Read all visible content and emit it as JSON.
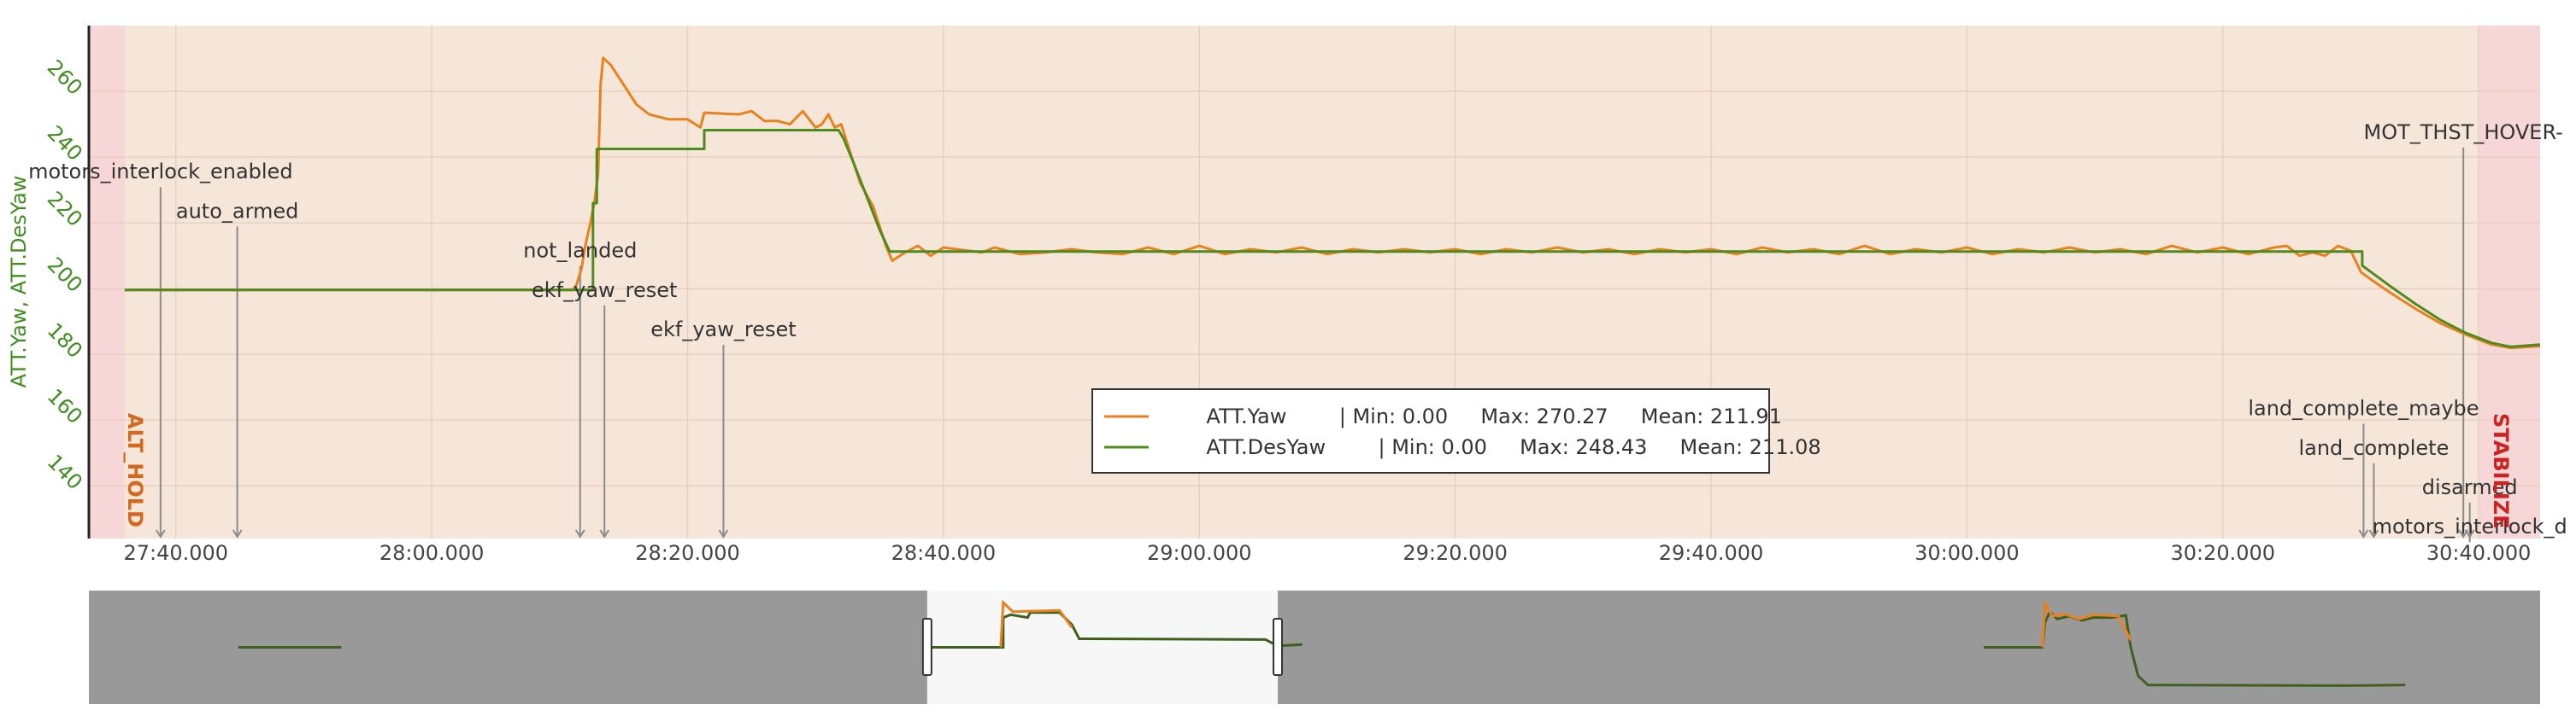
{
  "chart_data": {
    "type": "line",
    "xlabel": "",
    "ylabel": "ATT.Yaw, ATT.DesYaw",
    "x_range": [
      "27:33.200",
      "30:44.800"
    ],
    "ylim": [
      124,
      280
    ],
    "x_ticks": [
      "27:40.000",
      "28:00.000",
      "28:20.000",
      "28:40.000",
      "29:00.000",
      "29:20.000",
      "29:40.000",
      "30:00.000",
      "30:20.000",
      "30:40.000"
    ],
    "y_ticks": [
      140,
      160,
      180,
      200,
      220,
      240,
      260
    ],
    "grid": true,
    "legend": {
      "placement": "bottom-center",
      "entries": [
        {
          "name": "ATT.Yaw",
          "stats": "| Min: 0.00     Max: 270.27     Mean: 211.91"
        },
        {
          "name": "ATT.DesYaw",
          "stats": "| Min: 0.00     Max: 248.43     Mean: 211.08"
        }
      ]
    },
    "series": [
      {
        "name": "ATT.Yaw",
        "color": "#e8821f",
        "points": [
          [
            "27:36.000",
            199.6
          ],
          [
            "28:11.000",
            199.6
          ],
          [
            "28:11.300",
            201
          ],
          [
            "28:11.700",
            206
          ],
          [
            "28:12.000",
            213
          ],
          [
            "28:12.400",
            220
          ],
          [
            "28:12.700",
            226
          ],
          [
            "28:13.000",
            235
          ],
          [
            "28:13.200",
            262
          ],
          [
            "28:13.400",
            270.2
          ],
          [
            "28:14.000",
            268
          ],
          [
            "28:15.000",
            262
          ],
          [
            "28:16.000",
            256
          ],
          [
            "28:17.000",
            253
          ],
          [
            "28:18.500",
            251.5
          ],
          [
            "28:20.000",
            251.5
          ],
          [
            "28:21.000",
            249
          ],
          [
            "28:21.300",
            253.5
          ],
          [
            "28:24.000",
            253
          ],
          [
            "28:25.000",
            254
          ],
          [
            "28:26.000",
            251
          ],
          [
            "28:27.000",
            251
          ],
          [
            "28:28.000",
            250
          ],
          [
            "28:29.000",
            254
          ],
          [
            "28:30.000",
            249
          ],
          [
            "28:30.500",
            250
          ],
          [
            "28:31.000",
            253
          ],
          [
            "28:31.500",
            249
          ],
          [
            "28:32.000",
            250
          ],
          [
            "28:32.500",
            244
          ],
          [
            "28:33.500",
            232
          ],
          [
            "28:34.500",
            225
          ],
          [
            "28:35.500",
            213
          ],
          [
            "28:36.000",
            208.5
          ],
          [
            "28:37.000",
            211
          ],
          [
            "28:38.000",
            213
          ],
          [
            "28:39.000",
            210
          ],
          [
            "28:40.000",
            212.5
          ],
          [
            "28:41.000",
            212
          ],
          [
            "28:43.000",
            211
          ],
          [
            "28:44.000",
            212.5
          ],
          [
            "28:46.000",
            210.5
          ],
          [
            "28:48.000",
            211
          ],
          [
            "28:50.000",
            212
          ],
          [
            "28:52.000",
            211
          ],
          [
            "28:54.000",
            210.5
          ],
          [
            "28:56.000",
            212.5
          ],
          [
            "28:58.000",
            210.5
          ],
          [
            "29:00.000",
            213
          ],
          [
            "29:02.000",
            210.5
          ],
          [
            "29:04.000",
            212
          ],
          [
            "29:06.000",
            211
          ],
          [
            "29:08.000",
            212.5
          ],
          [
            "29:10.000",
            210.5
          ],
          [
            "29:12.000",
            212
          ],
          [
            "29:14.000",
            211
          ],
          [
            "29:16.000",
            212
          ],
          [
            "29:18.000",
            211
          ],
          [
            "29:20.000",
            212
          ],
          [
            "29:22.000",
            210.5
          ],
          [
            "29:24.000",
            212
          ],
          [
            "29:26.000",
            211
          ],
          [
            "29:28.000",
            212.5
          ],
          [
            "29:30.000",
            211
          ],
          [
            "29:32.000",
            212
          ],
          [
            "29:34.000",
            210.5
          ],
          [
            "29:36.000",
            212
          ],
          [
            "29:38.000",
            211
          ],
          [
            "29:40.000",
            212
          ],
          [
            "29:42.000",
            210.5
          ],
          [
            "29:44.000",
            212.5
          ],
          [
            "29:46.000",
            211
          ],
          [
            "29:48.000",
            212
          ],
          [
            "29:50.000",
            210.5
          ],
          [
            "29:52.000",
            213
          ],
          [
            "29:54.000",
            210.5
          ],
          [
            "29:56.000",
            212
          ],
          [
            "29:58.000",
            211
          ],
          [
            "30:00.000",
            212.5
          ],
          [
            "30:02.000",
            210.5
          ],
          [
            "30:04.000",
            212
          ],
          [
            "30:06.000",
            211
          ],
          [
            "30:08.000",
            212.5
          ],
          [
            "30:10.000",
            211
          ],
          [
            "30:12.000",
            212
          ],
          [
            "30:14.000",
            210.5
          ],
          [
            "30:16.000",
            213
          ],
          [
            "30:18.000",
            211
          ],
          [
            "30:20.000",
            212.5
          ],
          [
            "30:22.000",
            210.5
          ],
          [
            "30:24.000",
            212.5
          ],
          [
            "30:25.000",
            213
          ],
          [
            "30:26.000",
            210
          ],
          [
            "30:27.000",
            211
          ],
          [
            "30:28.000",
            210
          ],
          [
            "30:29.000",
            213
          ],
          [
            "30:30.000",
            211.5
          ],
          [
            "30:30.800",
            205
          ],
          [
            "30:31.500",
            203
          ],
          [
            "30:33.000",
            199
          ],
          [
            "30:35.000",
            194
          ],
          [
            "30:37.000",
            189.5
          ],
          [
            "30:39.000",
            186
          ],
          [
            "30:41.000",
            183
          ],
          [
            "30:42.500",
            182
          ],
          [
            "30:44.800",
            182.5
          ]
        ]
      },
      {
        "name": "ATT.DesYaw",
        "color": "#4f8a1f",
        "points": [
          [
            "27:36.000",
            199.6
          ],
          [
            "28:12.000",
            199.6
          ],
          [
            "28:12.600",
            199.6
          ],
          [
            "28:12.600",
            226
          ],
          [
            "28:12.900",
            226
          ],
          [
            "28:12.900",
            242.5
          ],
          [
            "28:15.000",
            242.5
          ],
          [
            "28:21.300",
            242.5
          ],
          [
            "28:21.300",
            248.2
          ],
          [
            "28:27.000",
            248.2
          ],
          [
            "28:31.800",
            248.2
          ],
          [
            "28:32.200",
            245.5
          ],
          [
            "28:33.000",
            238
          ],
          [
            "28:34.000",
            228
          ],
          [
            "28:35.000",
            218
          ],
          [
            "28:35.800",
            211.3
          ],
          [
            "30:30.900",
            211.3
          ],
          [
            "30:30.900",
            207
          ],
          [
            "30:33.000",
            201
          ],
          [
            "30:35.000",
            195.5
          ],
          [
            "30:37.000",
            190.5
          ],
          [
            "30:39.000",
            186.5
          ],
          [
            "30:41.000",
            183.5
          ],
          [
            "30:42.500",
            182.3
          ],
          [
            "30:44.800",
            183
          ]
        ]
      }
    ],
    "annotations": [
      {
        "label": "motors_interlock_enabled",
        "x": "27:38.800",
        "y": 233.5
      },
      {
        "label": "auto_armed",
        "x": "27:44.800",
        "y": 221.5
      },
      {
        "label": "not_landed",
        "x": "28:11.600",
        "y": 209.5
      },
      {
        "label": "ekf_yaw_reset",
        "x": "28:13.500",
        "y": 197.5
      },
      {
        "label": "ekf_yaw_reset",
        "x": "28:22.800",
        "y": 185.5
      },
      {
        "label": "MOT_THST_HOVER-",
        "x": "30:38.800",
        "y": 245.5
      },
      {
        "label": "land_complete_maybe",
        "x": "30:31.000",
        "y": 161.5
      },
      {
        "label": "land_complete",
        "x": "30:31.800",
        "y": 149.5
      },
      {
        "label": "disarmed",
        "x": "30:39.300",
        "y": 137.5
      },
      {
        "label": "motors_interlock_d",
        "x": "30:39.300",
        "y": 125.5
      }
    ],
    "modes": [
      {
        "label": "ALT_HOLD",
        "start": "27:33.200",
        "end": "27:36.000",
        "color": "#d2691e"
      },
      {
        "label": "STABILIZE",
        "start": "30:40.000",
        "end": "30:44.800",
        "color": "#cc2222"
      }
    ],
    "overview": {
      "window": [
        0.342,
        0.485
      ],
      "series_color_a": "#e8821f",
      "series_color_b": "#3f5f1f"
    }
  },
  "colors": {
    "plot_bg": "#f6e6da",
    "mode_band": "#f6d6d6",
    "grid": "#e6d0c0",
    "overview_bg": "#999999",
    "overview_window": "#f7f7f7",
    "ytick": "#3f8f1f"
  }
}
